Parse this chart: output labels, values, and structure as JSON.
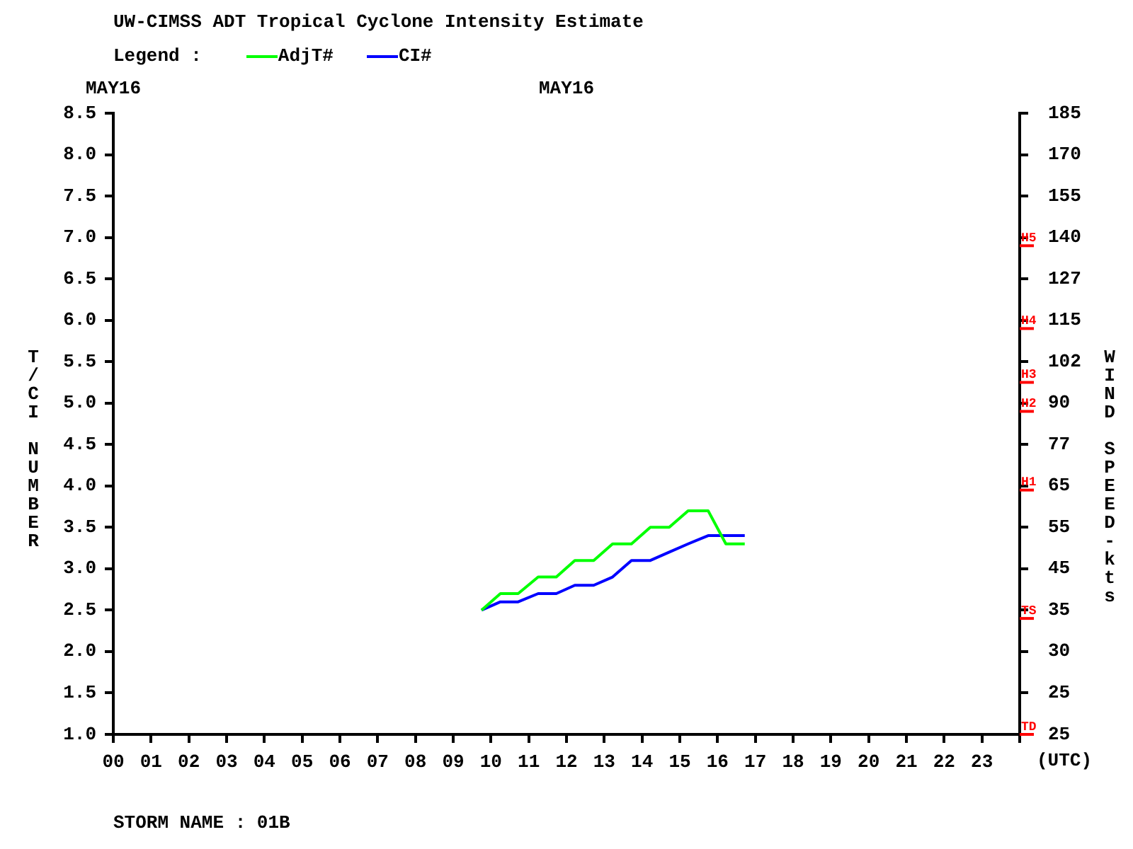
{
  "chart_data": {
    "type": "line",
    "title": "UW-CIMSS ADT Tropical Cyclone Intensity Estimate",
    "legend_title": "Legend :",
    "legend": "top left",
    "ylabel": "T/CI NUMBER",
    "y2label": "WIND SPEED-kts",
    "xlabel": "(UTC)",
    "marker": "none",
    "line_style": "solid",
    "grid": false,
    "annotations": [
      "STORM NAME : 01B",
      "MAY16",
      "MAY16"
    ],
    "xlim": [
      0,
      24
    ],
    "xticks": [
      {
        "value": 0,
        "label": "00"
      },
      {
        "value": 1,
        "label": "01"
      },
      {
        "value": 2,
        "label": "02"
      },
      {
        "value": 3,
        "label": "03"
      },
      {
        "value": 4,
        "label": "04"
      },
      {
        "value": 5,
        "label": "05"
      },
      {
        "value": 6,
        "label": "06"
      },
      {
        "value": 7,
        "label": "07"
      },
      {
        "value": 8,
        "label": "08"
      },
      {
        "value": 9,
        "label": "09"
      },
      10,
      11,
      12,
      13,
      14,
      15,
      16,
      17,
      18,
      19,
      20,
      21,
      22,
      23,
      {
        "value": 24,
        "label": null
      }
    ],
    "ylim": [
      1.0,
      8.5
    ],
    "yticks": [
      {
        "value": 1,
        "label": "1.0"
      },
      1.5,
      {
        "value": 2,
        "label": "2.0"
      },
      2.5,
      {
        "value": 3,
        "label": "3.0"
      },
      3.5,
      {
        "value": 4,
        "label": "4.0"
      },
      4.5,
      {
        "value": 5,
        "label": "5.0"
      },
      5.5,
      {
        "value": 6,
        "label": "6.0"
      },
      6.5,
      {
        "value": 7,
        "label": "7.0"
      },
      7.5,
      {
        "value": 8,
        "label": "8.0"
      },
      8.5
    ],
    "y2_categories": [
      "185",
      "170",
      "155",
      "140",
      "127",
      "115",
      "102",
      "90",
      "77",
      "65",
      "55",
      "45",
      "35",
      "30",
      "25",
      "25"
    ],
    "ref_lines": [
      {
        "axis": "y",
        "value": 6.9,
        "label": "H5",
        "color": "#ff0000"
      },
      {
        "axis": "y",
        "value": 5.9,
        "label": "H4",
        "color": "#ff0000"
      },
      {
        "axis": "y",
        "value": 5.25,
        "label": "H3",
        "color": "#ff0000"
      },
      {
        "axis": "y",
        "value": 4.9,
        "label": "H2",
        "color": "#ff0000"
      },
      {
        "axis": "y",
        "value": 3.95,
        "label": "H1",
        "color": "#ff0000"
      },
      {
        "axis": "y",
        "value": 2.4,
        "label": "TS",
        "color": "#ff0000"
      },
      {
        "axis": "y",
        "value": 1.0,
        "label": "TD",
        "color": "#ff0000"
      }
    ],
    "series": [
      {
        "name": "AdjT#",
        "color": "#00ff00",
        "x": [
          9.75,
          10.25,
          10.72,
          11.25,
          11.73,
          12.22,
          12.72,
          13.22,
          13.72,
          14.22,
          14.72,
          15.22,
          15.75,
          16.22,
          16.72
        ],
        "values": [
          2.5,
          2.7,
          2.7,
          2.9,
          2.9,
          3.1,
          3.1,
          3.3,
          3.3,
          3.5,
          3.5,
          3.7,
          3.7,
          3.3,
          3.3
        ]
      },
      {
        "name": "CI#",
        "color": "#0000ff",
        "x": [
          9.75,
          10.25,
          10.72,
          11.25,
          11.73,
          12.22,
          12.72,
          13.22,
          13.72,
          14.22,
          14.72,
          15.22,
          15.75,
          16.22,
          16.72
        ],
        "values": [
          2.5,
          2.6,
          2.6,
          2.7,
          2.7,
          2.8,
          2.8,
          2.9,
          3.1,
          3.1,
          3.2,
          3.3,
          3.4,
          3.4,
          3.4
        ]
      }
    ]
  }
}
